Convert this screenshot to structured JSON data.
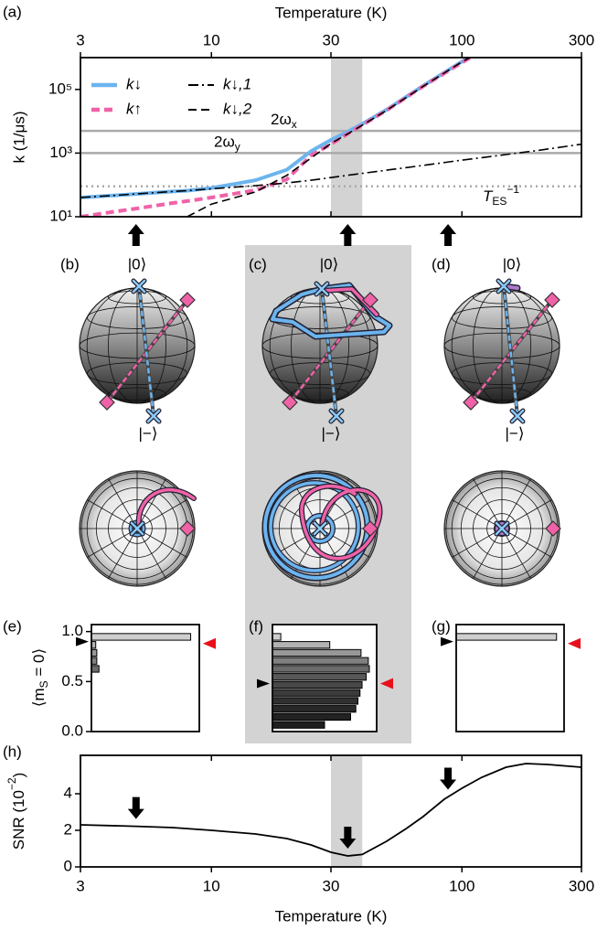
{
  "chart_data": [
    {
      "type": "line",
      "panel_label": "(a)",
      "xlabel": "Temperature (K)",
      "ylabel": "k (1/μs)",
      "xscale": "log",
      "yscale": "log",
      "xlim": [
        3,
        300
      ],
      "ylim": [
        10,
        1000000
      ],
      "xticks": [
        3,
        10,
        30,
        100,
        300
      ],
      "yticks": [
        {
          "value": 10,
          "label": "10¹"
        },
        {
          "value": 1000,
          "label": "10³"
        },
        {
          "value": 100000,
          "label": "10⁵"
        }
      ],
      "x": [
        3,
        4,
        5,
        7,
        8,
        10,
        15,
        20,
        25,
        30,
        35,
        40,
        50,
        70,
        100,
        120,
        150,
        200,
        300
      ],
      "series": [
        {
          "name": "k↓",
          "color": "#6cb4ee",
          "dash": "solid",
          "width": 4,
          "values": [
            40,
            46,
            52,
            62,
            66,
            80,
            140,
            300,
            1150,
            2600,
            4700,
            8200,
            23000,
            130000,
            750000,
            1700000,
            null,
            null,
            null
          ]
        },
        {
          "name": "k↑",
          "color": "#f062a8",
          "dash": "dashed",
          "width": 4,
          "values": [
            10,
            14,
            18,
            27,
            31,
            40,
            68,
            150,
            850,
            1900,
            4000,
            7500,
            22000,
            125000,
            700000,
            1600000,
            null,
            null,
            null
          ]
        },
        {
          "name": "k↓,1",
          "color": "#000000",
          "dash": "dashdot",
          "width": 1.6,
          "values": [
            40,
            46,
            52,
            62,
            66,
            75,
            95,
            115,
            140,
            170,
            200,
            230,
            290,
            410,
            600,
            720,
            900,
            1200,
            1900
          ]
        },
        {
          "name": "k↓,2",
          "color": "#000000",
          "dash": "dashed",
          "width": 1.6,
          "values": [
            null,
            null,
            null,
            null,
            10,
            25,
            60,
            200,
            700,
            2000,
            4000,
            7500,
            22000,
            125000,
            740000,
            1600000,
            null,
            null,
            null
          ]
        }
      ],
      "hlines": [
        {
          "value": 5000,
          "label": "2ω",
          "sub": "x",
          "color": "#aaaaaa",
          "dash": "solid"
        },
        {
          "value": 1000,
          "label": "2ω",
          "sub": "y",
          "color": "#aaaaaa",
          "dash": "solid"
        },
        {
          "value": 90,
          "label": "T",
          "sub": "ES",
          "sup": "−1",
          "color": "#aaaaaa",
          "dash": "dotted"
        }
      ],
      "shaded_range": [
        30,
        40
      ],
      "arrows_x": [
        5,
        35,
        88
      ],
      "legend": "upper left"
    },
    {
      "type": "histogram",
      "panel_label": "(e)",
      "ylabel": {
        "text": "⟨m",
        "sub": "S",
        "tail": " = 0⟩"
      },
      "xlim": [
        0,
        1
      ],
      "ylim": [
        0,
        1.07
      ],
      "yticks": [
        {
          "value": 0,
          "label": "0.0"
        },
        {
          "value": 0.5,
          "label": "0.5"
        },
        {
          "value": 1,
          "label": "1.0"
        }
      ],
      "bins": [
        0.02,
        0.1,
        0.18,
        0.26,
        0.34,
        0.42,
        0.5,
        0.58,
        0.66,
        0.74,
        0.82,
        0.9,
        0.98
      ],
      "values": [
        0,
        0,
        0,
        0,
        0,
        0,
        0,
        0.07,
        0.05,
        0.05,
        0.04,
        0.92
      ],
      "mean_markers": [
        {
          "side": "left",
          "value": 0.9,
          "color": "#000000"
        },
        {
          "side": "right",
          "value": 0.88,
          "color": "#e8101a"
        }
      ]
    },
    {
      "type": "histogram",
      "panel_label": "(f)",
      "xlim": [
        0,
        1
      ],
      "ylim": [
        0,
        1.07
      ],
      "bins": [
        0.02,
        0.1,
        0.18,
        0.26,
        0.34,
        0.42,
        0.5,
        0.58,
        0.66,
        0.74,
        0.82,
        0.9,
        0.98
      ],
      "values": [
        0.5,
        0.75,
        0.8,
        0.82,
        0.84,
        0.86,
        0.9,
        0.93,
        0.92,
        0.85,
        0.55,
        0.08
      ],
      "mean_markers": [
        {
          "side": "left",
          "value": 0.48,
          "color": "#000000"
        },
        {
          "side": "right",
          "value": 0.48,
          "color": "#e8101a"
        }
      ]
    },
    {
      "type": "histogram",
      "panel_label": "(g)",
      "xlim": [
        0,
        1
      ],
      "ylim": [
        0,
        1.07
      ],
      "bins": [
        0.02,
        0.1,
        0.18,
        0.26,
        0.34,
        0.42,
        0.5,
        0.58,
        0.66,
        0.74,
        0.82,
        0.9,
        0.98
      ],
      "values": [
        0,
        0,
        0,
        0,
        0,
        0,
        0,
        0,
        0,
        0,
        0,
        0.93
      ],
      "mean_markers": [
        {
          "side": "left",
          "value": 0.9,
          "color": "#000000"
        },
        {
          "side": "right",
          "value": 0.88,
          "color": "#e8101a"
        }
      ]
    },
    {
      "type": "line",
      "panel_label": "(h)",
      "xlabel": "Temperature (K)",
      "ylabel": {
        "text": "SNR (10",
        "sup": "−2",
        "tail": ")"
      },
      "xscale": "log",
      "xlim": [
        3,
        300
      ],
      "ylim": [
        0,
        6.1
      ],
      "xticks": [
        3,
        10,
        30,
        100,
        300
      ],
      "yticks": [
        0,
        2,
        4
      ],
      "x": [
        3,
        5,
        7,
        10,
        15,
        20,
        25,
        30,
        35,
        40,
        50,
        60,
        70,
        85,
        100,
        120,
        150,
        180,
        220,
        300
      ],
      "values": [
        2.3,
        2.22,
        2.15,
        2.0,
        1.8,
        1.55,
        1.2,
        0.8,
        0.6,
        0.68,
        1.4,
        2.1,
        2.75,
        3.7,
        4.3,
        4.9,
        5.45,
        5.65,
        5.6,
        5.45
      ],
      "color": "#000000",
      "shaded_range": [
        30,
        40
      ],
      "arrows_x": [
        5,
        35,
        88
      ]
    }
  ],
  "bloch": {
    "panels": [
      {
        "label": "(b)",
        "top_state": "|0⟩",
        "bottom_state": "|−⟩"
      },
      {
        "label": "(c)",
        "top_state": "|0⟩",
        "bottom_state": "|−⟩"
      },
      {
        "label": "(d)",
        "top_state": "|0⟩",
        "bottom_state": "|−⟩"
      }
    ]
  }
}
